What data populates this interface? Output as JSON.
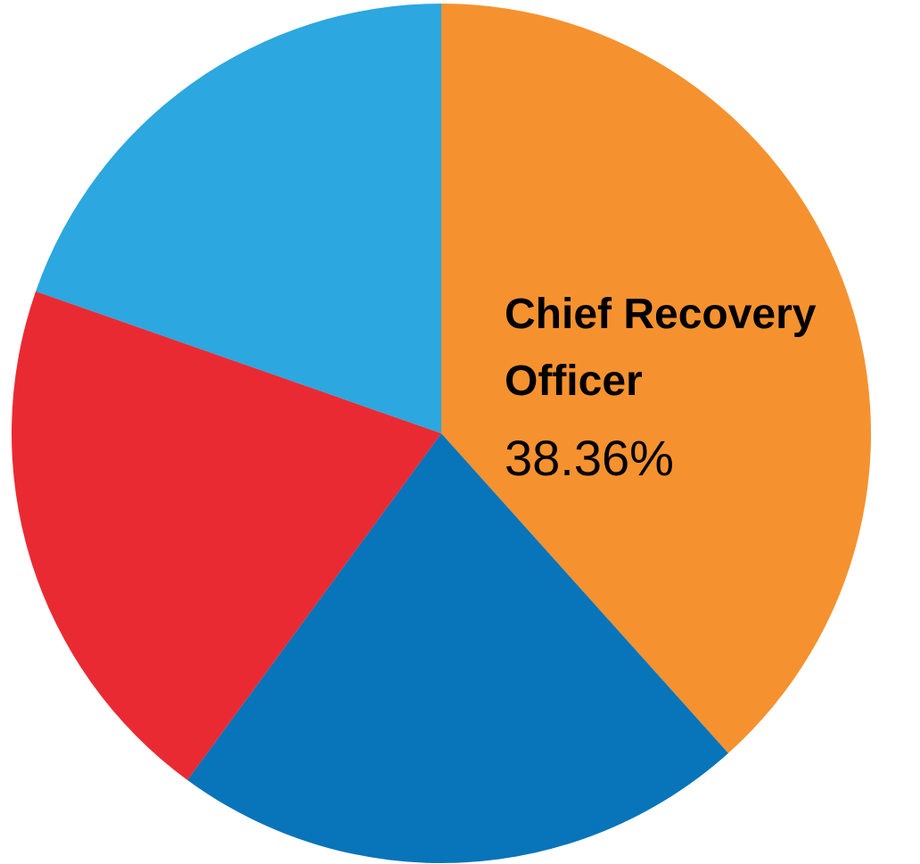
{
  "chart_data": {
    "type": "pie",
    "title": "",
    "slices": [
      {
        "name": "Chief Recovery Officer",
        "value": 38.36,
        "value_label": "38.36%",
        "color": "#F5922F",
        "labeled": true
      },
      {
        "name": "",
        "value": 21.7,
        "color": "#0874B9",
        "labeled": false
      },
      {
        "name": "",
        "value": 20.3,
        "color": "#EA2A33",
        "labeled": false
      },
      {
        "name": "",
        "value": 19.64,
        "color": "#2CA7DF",
        "labeled": false
      }
    ],
    "start": "12 o'clock",
    "direction": "clockwise",
    "legend": "none"
  }
}
